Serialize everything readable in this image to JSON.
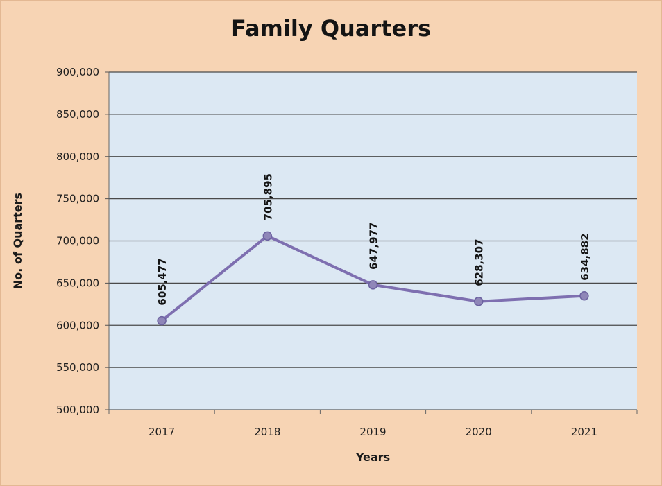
{
  "chart_data": {
    "type": "line",
    "title": "Family Quarters",
    "xlabel": "Years",
    "ylabel": "No. of Quarters",
    "categories": [
      "2017",
      "2018",
      "2019",
      "2020",
      "2021"
    ],
    "series": [
      {
        "values": [
          605477,
          705895,
          647977,
          628307,
          634882
        ]
      }
    ],
    "data_labels": [
      "605,477",
      "705,895",
      "647,977",
      "628,307",
      "634,882"
    ],
    "ylim": [
      500000,
      900000
    ],
    "yticks": [
      500000,
      550000,
      600000,
      650000,
      700000,
      750000,
      800000,
      850000,
      900000
    ],
    "ytick_labels": [
      "500,000",
      "550,000",
      "600,000",
      "650,000",
      "700,000",
      "750,000",
      "800,000",
      "850,000",
      "900,000"
    ],
    "grid": true,
    "legend": "none",
    "colors": {
      "background": "#f7d4b4",
      "plot_area": "#dce8f3",
      "gridline": "#4a4a4a",
      "line": "#7e6fb0",
      "marker": "#8f86b8"
    }
  }
}
